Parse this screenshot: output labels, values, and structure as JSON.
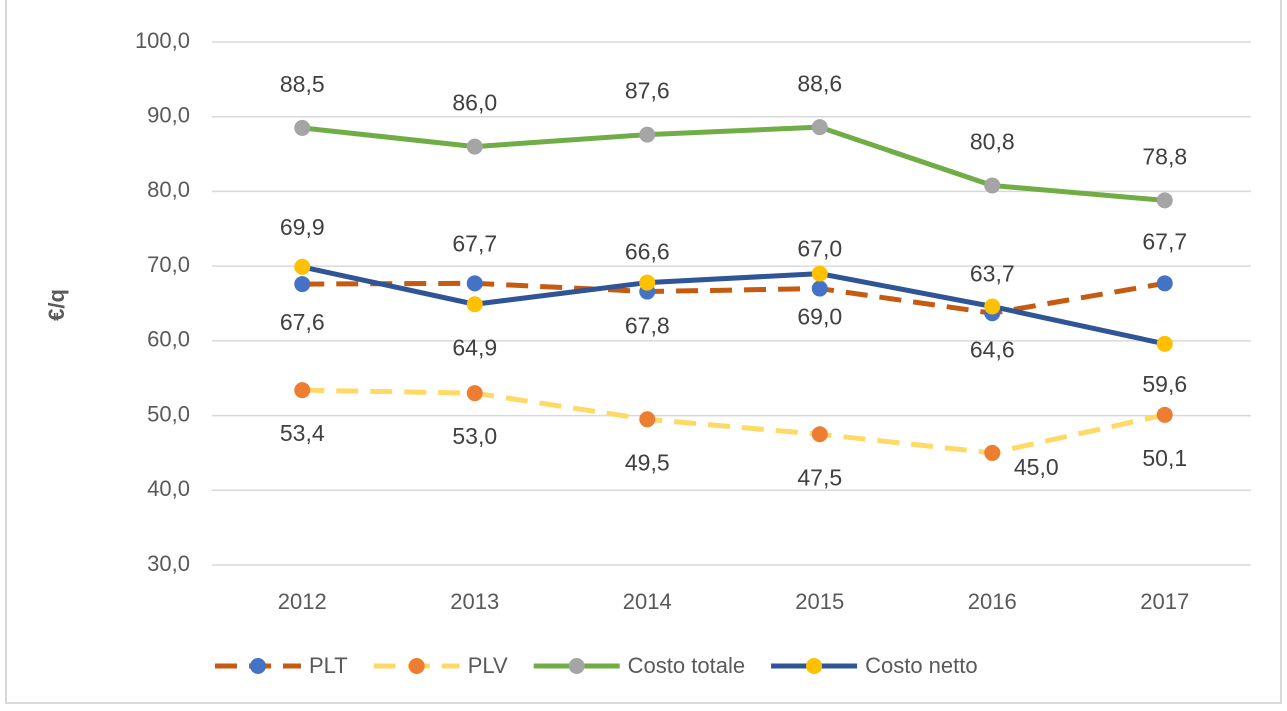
{
  "chart_data": {
    "type": "line",
    "y_label": "€/q",
    "categories": [
      "2012",
      "2013",
      "2014",
      "2015",
      "2016",
      "2017"
    ],
    "ylim": [
      30,
      100
    ],
    "yticks": [
      {
        "value": 30,
        "label": "30,0"
      },
      {
        "value": 40,
        "label": "40,0"
      },
      {
        "value": 50,
        "label": "50,0"
      },
      {
        "value": 60,
        "label": "60,0"
      },
      {
        "value": 70,
        "label": "70,0"
      },
      {
        "value": 80,
        "label": "80,0"
      },
      {
        "value": 90,
        "label": "90,0"
      },
      {
        "value": 100,
        "label": "100,0"
      }
    ],
    "grid": true,
    "legend": "bottom",
    "series": [
      {
        "name": "PLT",
        "color": "#c55a11",
        "marker_color": "#4472c4",
        "dashed": true,
        "values": [
          67.6,
          67.7,
          66.6,
          67.0,
          63.7,
          67.7
        ],
        "value_labels": [
          "67,6",
          "67,7",
          "66,6",
          "67,0",
          "63,7",
          "67,7"
        ]
      },
      {
        "name": "PLV",
        "color": "#ffd966",
        "marker_color": "#ed7d31",
        "dashed": true,
        "values": [
          53.4,
          53.0,
          49.5,
          47.5,
          45.0,
          50.1
        ],
        "value_labels": [
          "53,4",
          "53,0",
          "49,5",
          "47,5",
          "45,0",
          "50,1"
        ]
      },
      {
        "name": "Costo totale",
        "color": "#70ad47",
        "marker_color": "#a5a5a5",
        "dashed": false,
        "values": [
          88.5,
          86.0,
          87.6,
          88.6,
          80.8,
          78.8
        ],
        "value_labels": [
          "88,5",
          "86,0",
          "87,6",
          "88,6",
          "80,8",
          "78,8"
        ]
      },
      {
        "name": "Costo netto",
        "color": "#2f5597",
        "marker_color": "#ffc000",
        "dashed": false,
        "values": [
          69.9,
          64.9,
          67.8,
          69.0,
          64.6,
          59.6
        ],
        "value_labels": [
          "69,9",
          "64,9",
          "67,8",
          "69,0",
          "64,6",
          "59,6"
        ]
      }
    ]
  }
}
